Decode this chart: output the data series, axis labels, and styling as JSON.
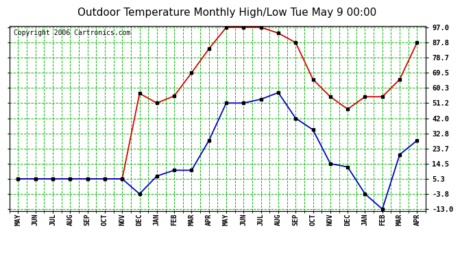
{
  "title": "Outdoor Temperature Monthly High/Low Tue May 9 00:00",
  "copyright": "Copyright 2006 Cartronics.com",
  "months": [
    "MAY",
    "JUN",
    "JUL",
    "AUG",
    "SEP",
    "OCT",
    "NOV",
    "DEC",
    "JAN",
    "FEB",
    "MAR",
    "APR",
    "MAY",
    "JUN",
    "JUL",
    "AUG",
    "SEP",
    "OCT",
    "NOV",
    "DEC",
    "JAN",
    "FEB",
    "MAR",
    "APR"
  ],
  "high_temps": [
    5.3,
    5.3,
    5.3,
    5.3,
    5.3,
    5.3,
    5.3,
    57.0,
    51.2,
    55.5,
    69.5,
    84.0,
    97.0,
    97.0,
    97.0,
    93.5,
    87.8,
    65.5,
    55.0,
    47.5,
    55.0,
    55.0,
    65.5,
    87.8
  ],
  "low_temps": [
    5.3,
    5.3,
    5.3,
    5.3,
    5.3,
    5.3,
    5.3,
    -3.8,
    7.0,
    10.5,
    10.5,
    28.5,
    51.2,
    51.2,
    53.5,
    57.5,
    42.0,
    35.0,
    14.5,
    12.5,
    -3.8,
    -13.0,
    20.0,
    28.5
  ],
  "y_ticks": [
    97.0,
    87.8,
    78.7,
    69.5,
    60.3,
    51.2,
    42.0,
    32.8,
    23.7,
    14.5,
    5.3,
    -3.8,
    -13.0
  ],
  "ylim_min": -13.0,
  "ylim_max": 97.0,
  "high_color": "#dd0000",
  "low_color": "#0000cc",
  "grid_major_color": "#00bb00",
  "grid_minor_color": "#00bb00",
  "bg_color": "#ffffff",
  "title_fontsize": 11,
  "copyright_fontsize": 7
}
